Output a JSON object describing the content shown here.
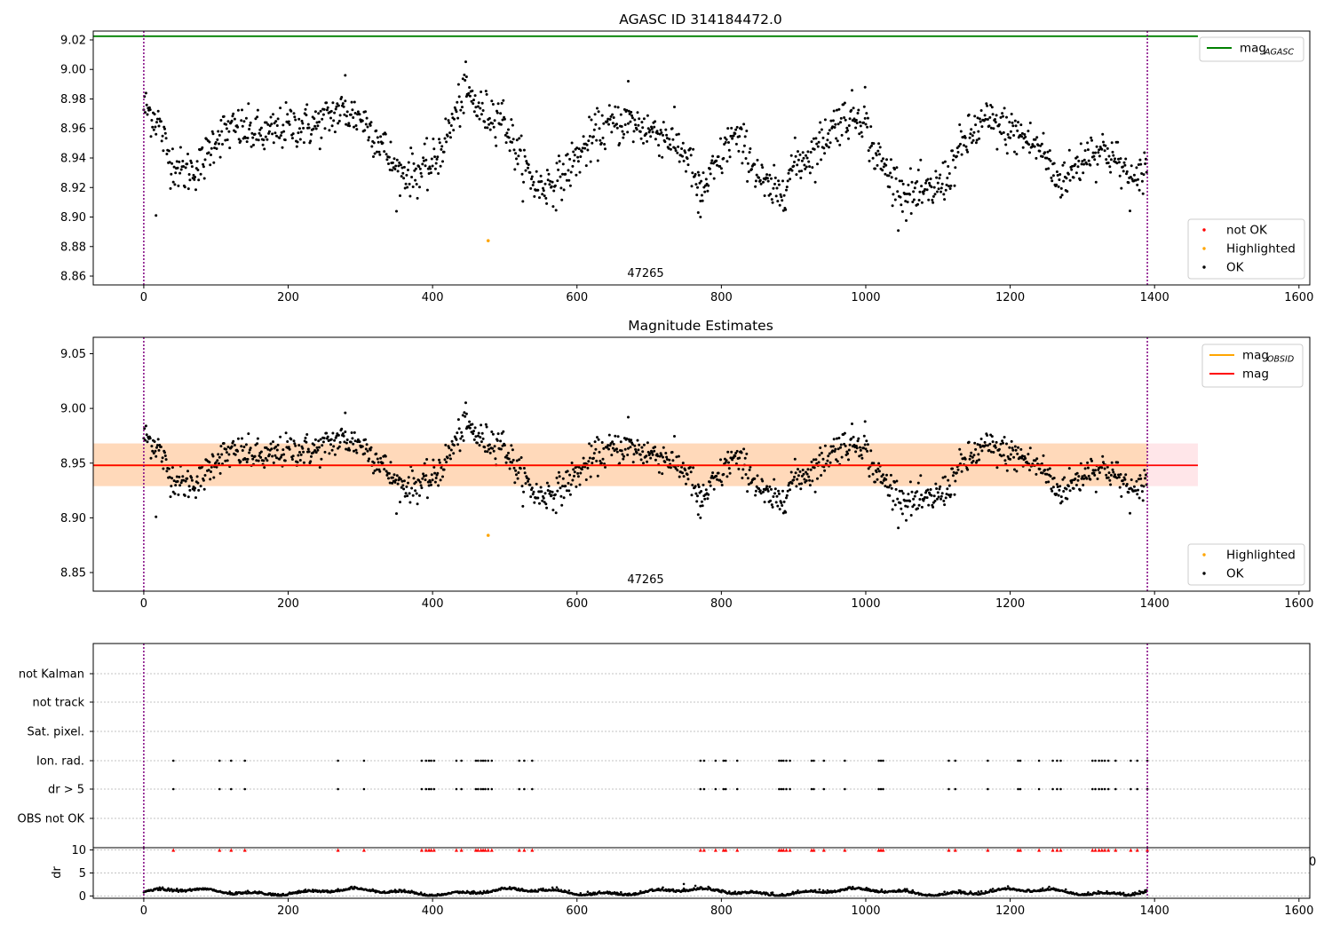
{
  "chart_data": [
    {
      "type": "scatter",
      "title": "AGASC ID 314184472.0",
      "xlim": [
        -70,
        1615
      ],
      "ylim": [
        8.854,
        9.026
      ],
      "xticks": [
        "0",
        "200",
        "400",
        "600",
        "800",
        "1000",
        "1200",
        "1400",
        "1600"
      ],
      "yticks": [
        "8.86",
        "8.88",
        "8.90",
        "8.92",
        "8.94",
        "8.96",
        "8.98",
        "9.00",
        "9.02"
      ],
      "obsid_label": "47265",
      "vlines": [
        0,
        1390
      ],
      "mag_agasc": 9.0225,
      "mag_agasc_xrange": [
        -70,
        1460
      ],
      "highlighted": [
        {
          "x": 477,
          "y": 8.884
        }
      ],
      "legend_top": [
        {
          "label": "mag",
          "sub": "AGASC",
          "color": "#008000"
        }
      ],
      "legend_bottom": [
        {
          "label": "not OK",
          "color": "#ff0000"
        },
        {
          "label": "Highlighted",
          "color": "#ffa500"
        },
        {
          "label": "OK",
          "color": "#000000"
        }
      ],
      "series_description": "~1390 black OK points following a quasi-periodic light curve between 8.90 and 9.00"
    },
    {
      "type": "scatter",
      "title": "Magnitude Estimates",
      "xlim": [
        -70,
        1615
      ],
      "ylim": [
        8.833,
        9.065
      ],
      "xticks": [
        "0",
        "200",
        "400",
        "600",
        "800",
        "1000",
        "1200",
        "1400",
        "1600"
      ],
      "yticks": [
        "8.85",
        "8.90",
        "8.95",
        "9.00",
        "9.05"
      ],
      "obsid_label": "47265",
      "vlines": [
        0,
        1390
      ],
      "mag": 8.948,
      "mag_obsid": 8.948,
      "band": [
        8.929,
        8.968
      ],
      "band_xrange": [
        -70,
        1460
      ],
      "band_obsid_xrange": [
        -70,
        1390
      ],
      "highlighted": [
        {
          "x": 477,
          "y": 8.884
        }
      ],
      "legend_top": [
        {
          "label": "mag",
          "sub": "OBSID",
          "color": "#ffa500"
        },
        {
          "label": "mag",
          "sub": "",
          "color": "#ff0000"
        }
      ],
      "legend_bottom": [
        {
          "label": "Highlighted",
          "color": "#ffa500"
        },
        {
          "label": "OK",
          "color": "#000000"
        }
      ]
    },
    {
      "type": "scatter",
      "xlim": [
        -70,
        1615
      ],
      "vlines": [
        0,
        1390
      ],
      "flag_rows": [
        "not Kalman",
        "not track",
        "Sat. pixel.",
        "Ion. rad.",
        "dr > 5",
        "OBS not OK"
      ],
      "flag_x": [
        41,
        105,
        121,
        140,
        269,
        305,
        385,
        391,
        395,
        398,
        402,
        433,
        440,
        460,
        463,
        467,
        470,
        473,
        477,
        482,
        520,
        527,
        538,
        771,
        776,
        792,
        803,
        806,
        822,
        880,
        883,
        886,
        890,
        895,
        925,
        928,
        942,
        971,
        1018,
        1021,
        1024,
        1115,
        1124,
        1169,
        1211,
        1214,
        1240,
        1259,
        1265,
        1270,
        1314,
        1318,
        1323,
        1327,
        1331,
        1336,
        1346,
        1367,
        1376,
        1390
      ],
      "flag_rows_marked": [
        "Ion. rad.",
        "dr > 5"
      ],
      "dr": {
        "ylabel": "dr",
        "yticks": [
          "0",
          "5",
          "10"
        ],
        "ylim": [
          -0.5,
          10.5
        ],
        "threshold": 10,
        "overflow_label": "0"
      }
    }
  ]
}
